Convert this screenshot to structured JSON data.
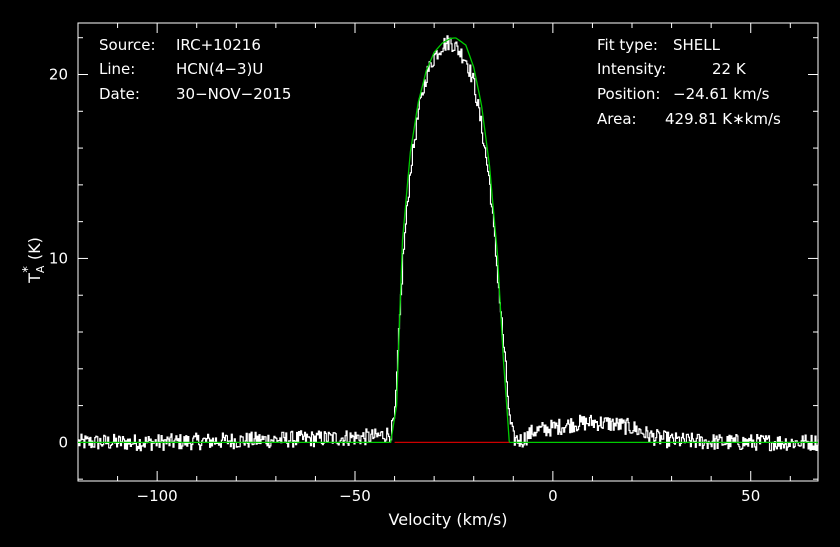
{
  "info_left": {
    "source_label": "Source:",
    "source_value": "IRC+10216",
    "line_label": "Line:",
    "line_value": "HCN(4−3)U",
    "date_label": "Date:",
    "date_value": "30−NOV−2015"
  },
  "info_right": {
    "fit_label": "Fit type:",
    "fit_value": "SHELL",
    "intensity_label": "Intensity:",
    "intensity_value": "22 K",
    "position_label": "Position:",
    "position_value": "−24.61 km/s",
    "area_label": "Area:",
    "area_value": "429.81 K∗km/s"
  },
  "colors": {
    "background": "#000000",
    "spectrum": "#ffffff",
    "fit": "#00cc00",
    "baseline": "#cc0000",
    "axes": "#ffffff"
  },
  "chart_data": {
    "type": "line",
    "xlabel": "Velocity (km/s)",
    "ylabel": "T",
    "ylabel_sub": "A",
    "ylabel_sup": "*",
    "ylabel_unit": "(K)",
    "xlim": [
      -120,
      67
    ],
    "ylim": [
      -2.1,
      22.8
    ],
    "xticks": [
      -100,
      -50,
      0,
      50
    ],
    "xtick_labels": [
      "−100",
      "−50",
      "0",
      "50"
    ],
    "yticks": [
      0,
      10,
      20
    ],
    "ytick_labels": [
      "0",
      "10",
      "20"
    ],
    "grid": false,
    "series": [
      {
        "role": "spectrum",
        "x": [
          -120,
          -100,
          -80,
          -60,
          -45,
          -41,
          -40,
          -38,
          -36,
          -34,
          -32,
          -30,
          -28,
          -26,
          -24.6,
          -22,
          -20,
          -18,
          -16,
          -14,
          -12,
          -11,
          -10,
          -8,
          -5,
          0,
          5,
          10,
          15,
          20,
          25,
          30,
          45,
          67
        ],
        "y": [
          0,
          0,
          0.1,
          0.2,
          0.3,
          0.5,
          1.5,
          10,
          15,
          18,
          20,
          21,
          21.6,
          21.8,
          21.5,
          20.8,
          19.5,
          17,
          14,
          9,
          4,
          1.2,
          0.2,
          0.1,
          0.6,
          0.8,
          1,
          1.1,
          1.0,
          0.8,
          0.3,
          0.1,
          0,
          0
        ]
      },
      {
        "role": "fit",
        "x": [
          -120,
          -41,
          -39.5,
          -38,
          -36,
          -34,
          -32,
          -30,
          -28,
          -26,
          -24.6,
          -22,
          -20,
          -18,
          -16,
          -14,
          -12.5,
          -11,
          67
        ],
        "y": [
          0,
          0,
          2,
          11,
          15.8,
          18.5,
          20.2,
          21.2,
          21.7,
          21.95,
          22,
          21.6,
          20.4,
          18.3,
          15,
          10.2,
          4.5,
          0,
          0
        ]
      },
      {
        "role": "baseline",
        "x": [
          -40,
          -11
        ],
        "y": [
          0,
          0
        ]
      }
    ]
  }
}
